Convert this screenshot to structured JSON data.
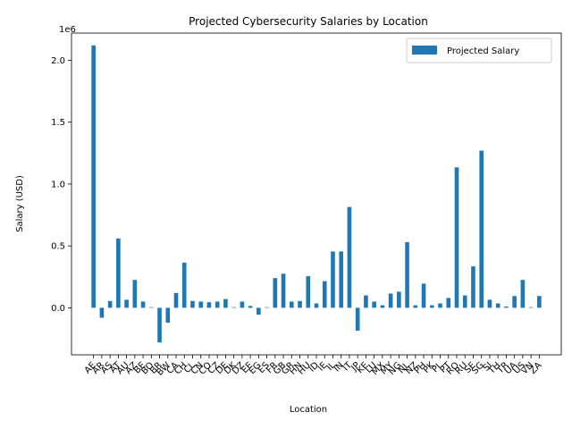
{
  "chart_data": {
    "type": "bar",
    "title": "Projected Cybersecurity Salaries by Location",
    "xlabel": "Location",
    "ylabel": "Salary (USD)",
    "y_scale_label": "1e6",
    "ylim": [
      -380000,
      2220000
    ],
    "yticks": [
      0.0,
      0.5,
      1.0,
      1.5,
      2.0
    ],
    "grid": false,
    "legend_position": "top-right",
    "series": [
      {
        "name": "Projected Salary",
        "color": "#1f77b4",
        "values": [
          2120000,
          -80000,
          55000,
          560000,
          65000,
          225000,
          50000,
          5000,
          -280000,
          -120000,
          120000,
          365000,
          55000,
          50000,
          45000,
          50000,
          70000,
          5000,
          50000,
          15000,
          -55000,
          5000,
          240000,
          275000,
          50000,
          55000,
          255000,
          35000,
          215000,
          455000,
          455000,
          815000,
          -185000,
          100000,
          50000,
          20000,
          115000,
          130000,
          530000,
          20000,
          195000,
          20000,
          35000,
          80000,
          1135000,
          100000,
          335000,
          1270000,
          65000,
          35000,
          10000,
          95000,
          225000,
          5000,
          95000
        ]
      }
    ],
    "categories": [
      "AE",
      "AR",
      "AS",
      "AT",
      "AU",
      "AZ",
      "BE",
      "BO",
      "BR",
      "BW",
      "CA",
      "CH",
      "CL",
      "CN",
      "CO",
      "CZ",
      "DE",
      "DK",
      "DZ",
      "EE",
      "EG",
      "ES",
      "FR",
      "GB",
      "GR",
      "HN",
      "HU",
      "ID",
      "IE",
      "IL",
      "IN",
      "IT",
      "JP",
      "KE",
      "LU",
      "MX",
      "MY",
      "NG",
      "NL",
      "NZ",
      "PH",
      "PK",
      "PL",
      "PT",
      "RO",
      "RU",
      "SE",
      "SG",
      "SI",
      "TH",
      "TR",
      "UA",
      "US",
      "VN",
      "ZA"
    ]
  }
}
